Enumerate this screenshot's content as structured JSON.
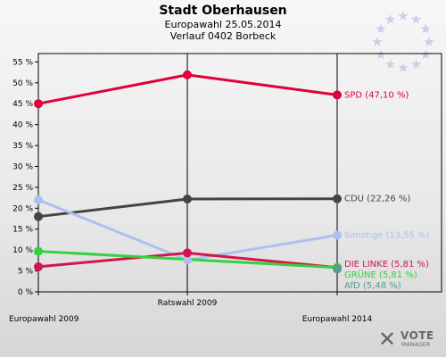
{
  "header": {
    "title": "Stadt Oberhausen",
    "subtitle_1": "Europawahl 25.05.2014",
    "subtitle_2": "Verlauf 0402 Borbeck"
  },
  "logo": {
    "mark": "✕",
    "word": "VOTE",
    "sub": "MANAGER"
  },
  "chart_data": {
    "type": "line",
    "categories": [
      "Europawahl 2009",
      "Ratswahl 2009",
      "Europawahl 2014"
    ],
    "y_tick_labels": [
      "0 %",
      "5 %",
      "10 %",
      "15 %",
      "20 %",
      "25 %",
      "30 %",
      "35 %",
      "40 %",
      "45 %",
      "50 %",
      "55 %"
    ],
    "ylim": [
      0,
      57
    ],
    "grid": false,
    "legend": "labels at right end of lines",
    "series": [
      {
        "name": "SPD",
        "label": "SPD (47,10 %)",
        "color": "#e0003c",
        "values": [
          45.0,
          51.9,
          47.1
        ]
      },
      {
        "name": "CDU",
        "label": "CDU (22,26 %)",
        "color": "#444444",
        "values": [
          18.0,
          22.2,
          22.26
        ]
      },
      {
        "name": "Sonstige",
        "label": "Sonstige (13,55 %)",
        "color": "#adc0ef",
        "values": [
          22.0,
          7.6,
          13.55
        ]
      },
      {
        "name": "DIE LINKE",
        "label": "DIE LINKE (5,81 %)",
        "color": "#d3144d",
        "values": [
          6.0,
          9.3,
          5.81
        ]
      },
      {
        "name": "GRÜNE",
        "label": "GRÜNE (5,81 %)",
        "color": "#34d13c",
        "values": [
          9.7,
          null,
          5.81
        ]
      },
      {
        "name": "AfD",
        "label": "AfD (5,48 %)",
        "color": "#5a9a8f",
        "values": [
          null,
          null,
          5.48
        ]
      }
    ]
  },
  "stars_color": "#c9d2e4"
}
